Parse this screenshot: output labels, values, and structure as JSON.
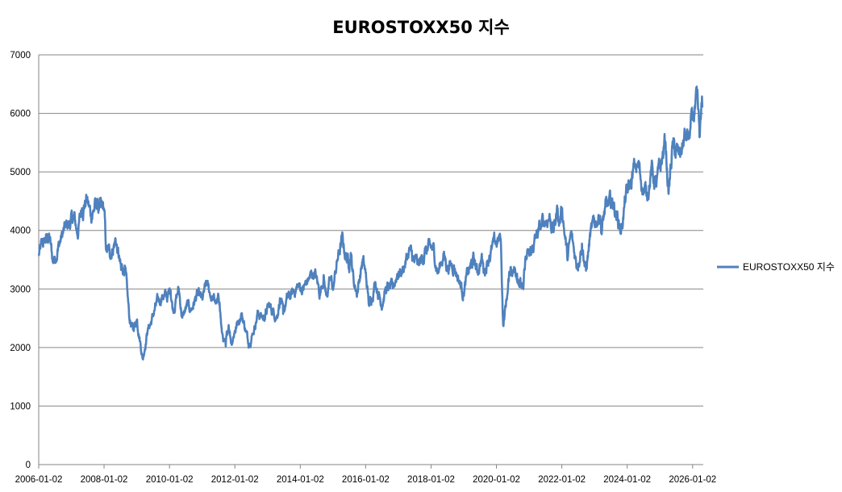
{
  "chart_data": {
    "type": "line",
    "title": "EUROSTOXX50 지수",
    "xlabel": "",
    "ylabel": "",
    "ylim": [
      0,
      7000
    ],
    "yticks": [
      0,
      1000,
      2000,
      3000,
      4000,
      5000,
      6000,
      7000
    ],
    "xlim": [
      "2006-01-02",
      "2026-05-01"
    ],
    "xticks": [
      "2006-01-02",
      "2008-01-02",
      "2010-01-02",
      "2012-01-02",
      "2014-01-02",
      "2016-01-02",
      "2018-01-02",
      "2020-01-02",
      "2022-01-02",
      "2024-01-02",
      "2026-01-02"
    ],
    "grid": "horizontal",
    "legend": "right",
    "color": "#4F81BD",
    "series": [
      {
        "name": "EUROSTOXX50 지수",
        "points": [
          [
            "2006-01-02",
            3580
          ],
          [
            "2006-03-01",
            3800
          ],
          [
            "2006-05-01",
            3890
          ],
          [
            "2006-06-10",
            3450
          ],
          [
            "2006-08-01",
            3700
          ],
          [
            "2006-10-01",
            3950
          ],
          [
            "2006-12-01",
            4100
          ],
          [
            "2007-02-01",
            4200
          ],
          [
            "2007-03-10",
            3950
          ],
          [
            "2007-05-01",
            4400
          ],
          [
            "2007-06-20",
            4550
          ],
          [
            "2007-08-10",
            4250
          ],
          [
            "2007-10-01",
            4450
          ],
          [
            "2007-11-20",
            4350
          ],
          [
            "2008-01-02",
            4350
          ],
          [
            "2008-01-25",
            3650
          ],
          [
            "2008-03-10",
            3600
          ],
          [
            "2008-05-10",
            3850
          ],
          [
            "2008-07-10",
            3300
          ],
          [
            "2008-08-20",
            3400
          ],
          [
            "2008-10-10",
            2500
          ],
          [
            "2008-11-20",
            2300
          ],
          [
            "2009-01-05",
            2500
          ],
          [
            "2009-03-09",
            1810
          ],
          [
            "2009-05-01",
            2300
          ],
          [
            "2009-06-15",
            2450
          ],
          [
            "2009-08-01",
            2700
          ],
          [
            "2009-10-20",
            2900
          ],
          [
            "2009-12-10",
            2850
          ],
          [
            "2010-01-15",
            3000
          ],
          [
            "2010-02-10",
            2650
          ],
          [
            "2010-04-15",
            3000
          ],
          [
            "2010-05-25",
            2500
          ],
          [
            "2010-07-15",
            2700
          ],
          [
            "2010-09-01",
            2650
          ],
          [
            "2010-11-01",
            2880
          ],
          [
            "2011-01-05",
            2800
          ],
          [
            "2011-02-20",
            3070
          ],
          [
            "2011-04-01",
            2900
          ],
          [
            "2011-06-15",
            2750
          ],
          [
            "2011-07-15",
            2800
          ],
          [
            "2011-08-10",
            2250
          ],
          [
            "2011-09-22",
            1995
          ],
          [
            "2011-10-25",
            2400
          ],
          [
            "2011-11-25",
            2100
          ],
          [
            "2012-01-02",
            2300
          ],
          [
            "2012-03-15",
            2600
          ],
          [
            "2012-05-10",
            2250
          ],
          [
            "2012-06-01",
            2080
          ],
          [
            "2012-07-20",
            2250
          ],
          [
            "2012-09-15",
            2600
          ],
          [
            "2012-11-15",
            2500
          ],
          [
            "2013-01-15",
            2700
          ],
          [
            "2013-04-15",
            2550
          ],
          [
            "2013-05-20",
            2850
          ],
          [
            "2013-06-25",
            2550
          ],
          [
            "2013-08-01",
            2800
          ],
          [
            "2013-10-01",
            2900
          ],
          [
            "2013-12-01",
            3050
          ],
          [
            "2014-02-01",
            3000
          ],
          [
            "2014-04-01",
            3150
          ],
          [
            "2014-06-10",
            3300
          ],
          [
            "2014-08-08",
            2920
          ],
          [
            "2014-09-20",
            3250
          ],
          [
            "2014-10-16",
            2900
          ],
          [
            "2014-12-10",
            3150
          ],
          [
            "2015-01-05",
            3000
          ],
          [
            "2015-02-15",
            3450
          ],
          [
            "2015-04-13",
            3830
          ],
          [
            "2015-05-20",
            3600
          ],
          [
            "2015-06-30",
            3450
          ],
          [
            "2015-07-20",
            3650
          ],
          [
            "2015-08-24",
            3100
          ],
          [
            "2015-09-29",
            2950
          ],
          [
            "2015-11-30",
            3500
          ],
          [
            "2016-01-02",
            3250
          ],
          [
            "2016-02-11",
            2700
          ],
          [
            "2016-04-20",
            3150
          ],
          [
            "2016-06-27",
            2760
          ],
          [
            "2016-08-15",
            3000
          ],
          [
            "2016-11-01",
            3000
          ],
          [
            "2016-12-20",
            3270
          ],
          [
            "2017-02-15",
            3320
          ],
          [
            "2017-05-05",
            3650
          ],
          [
            "2017-06-30",
            3450
          ],
          [
            "2017-08-20",
            3400
          ],
          [
            "2017-11-01",
            3650
          ],
          [
            "2018-01-23",
            3680
          ],
          [
            "2018-03-23",
            3280
          ],
          [
            "2018-05-20",
            3600
          ],
          [
            "2018-07-01",
            3400
          ],
          [
            "2018-09-15",
            3420
          ],
          [
            "2018-12-27",
            2940
          ],
          [
            "2019-02-15",
            3250
          ],
          [
            "2019-04-25",
            3500
          ],
          [
            "2019-06-01",
            3280
          ],
          [
            "2019-07-20",
            3550
          ],
          [
            "2019-08-15",
            3300
          ],
          [
            "2019-10-15",
            3600
          ],
          [
            "2020-01-02",
            3790
          ],
          [
            "2020-02-19",
            3860
          ],
          [
            "2020-03-18",
            2380
          ],
          [
            "2020-05-01",
            2900
          ],
          [
            "2020-06-08",
            3380
          ],
          [
            "2020-08-20",
            3300
          ],
          [
            "2020-10-29",
            2960
          ],
          [
            "2020-11-20",
            3500
          ],
          [
            "2021-01-05",
            3550
          ],
          [
            "2021-03-15",
            3850
          ],
          [
            "2021-06-15",
            4150
          ],
          [
            "2021-08-15",
            4250
          ],
          [
            "2021-10-05",
            4000
          ],
          [
            "2021-11-17",
            4400
          ],
          [
            "2021-12-01",
            4100
          ],
          [
            "2022-01-05",
            4400
          ],
          [
            "2022-03-07",
            3500
          ],
          [
            "2022-04-15",
            3900
          ],
          [
            "2022-06-20",
            3400
          ],
          [
            "2022-08-15",
            3800
          ],
          [
            "2022-09-29",
            3300
          ],
          [
            "2022-11-15",
            3900
          ],
          [
            "2023-01-15",
            4150
          ],
          [
            "2023-03-06",
            4300
          ],
          [
            "2023-03-20",
            4000
          ],
          [
            "2023-05-01",
            4350
          ],
          [
            "2023-07-31",
            4470
          ],
          [
            "2023-10-27",
            4010
          ],
          [
            "2023-12-15",
            4550
          ],
          [
            "2024-02-15",
            4800
          ],
          [
            "2024-03-28",
            5080
          ],
          [
            "2024-05-15",
            5050
          ],
          [
            "2024-06-14",
            4800
          ],
          [
            "2024-08-05",
            4600
          ],
          [
            "2024-09-30",
            5050
          ],
          [
            "2024-11-20",
            4750
          ],
          [
            "2025-01-15",
            5100
          ],
          [
            "2025-03-03",
            5550
          ],
          [
            "2025-04-09",
            4620
          ],
          [
            "2025-05-20",
            5400
          ],
          [
            "2025-08-01",
            5250
          ],
          [
            "2025-10-10",
            5600
          ],
          [
            "2025-11-20",
            5550
          ],
          [
            "2026-01-20",
            6000
          ],
          [
            "2026-02-20",
            6150
          ],
          [
            "2026-03-20",
            5550
          ],
          [
            "2026-04-20",
            6100
          ]
        ]
      }
    ]
  }
}
